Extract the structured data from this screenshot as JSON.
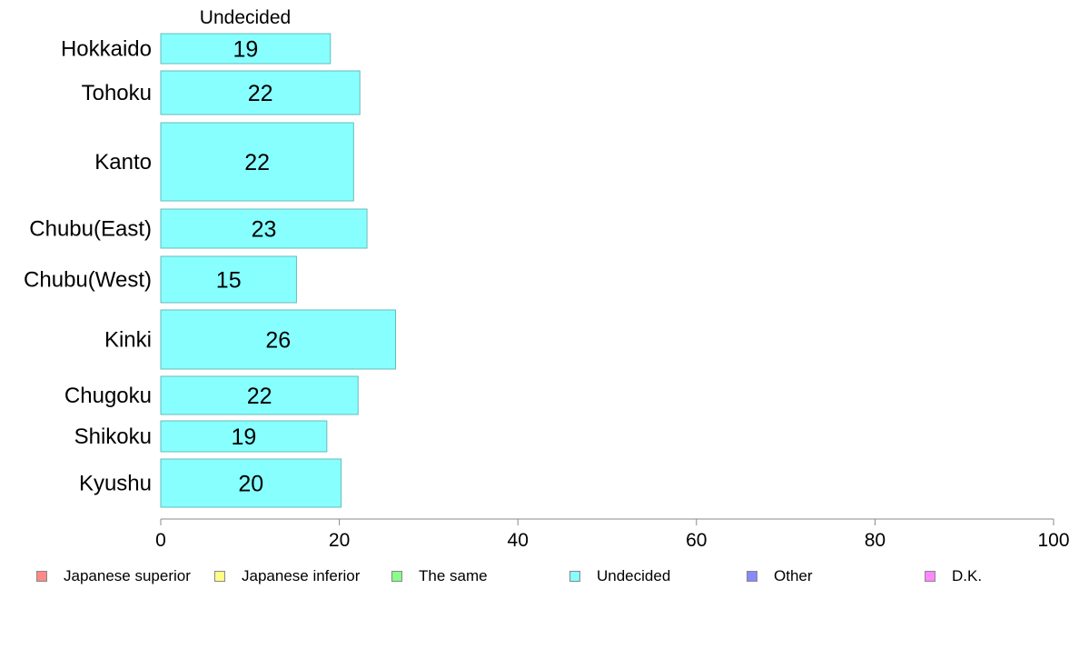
{
  "chart_data": {
    "type": "bar",
    "orientation": "horizontal",
    "title": "Undecided",
    "categories": [
      "Hokkaido",
      "Tohoku",
      "Kanto",
      "Chubu(East)",
      "Chubu(West)",
      "Kinki",
      "Chugoku",
      "Shikoku",
      "Kyushu"
    ],
    "values": [
      19,
      22.3,
      21.6,
      23.1,
      15.2,
      26.3,
      22.1,
      18.6,
      20.2
    ],
    "value_labels": [
      "19",
      "22",
      "22",
      "23",
      "15",
      "26",
      "22",
      "19",
      "20"
    ],
    "xlim": [
      0,
      100
    ],
    "xticks": [
      "0",
      "20",
      "40",
      "60",
      "80",
      "100"
    ],
    "bar_color": "#88ffff",
    "bar_border_color": "#66bbbb",
    "legend_placement": "bottom",
    "legend": [
      {
        "name": "Japanese superior",
        "color": "#ff8888"
      },
      {
        "name": "Japanese inferior",
        "color": "#ffff88"
      },
      {
        "name": "The same",
        "color": "#88ff88"
      },
      {
        "name": "Undecided",
        "color": "#88ffff"
      },
      {
        "name": "Other",
        "color": "#8888ff"
      },
      {
        "name": "D.K.",
        "color": "#ff88ff"
      }
    ]
  }
}
